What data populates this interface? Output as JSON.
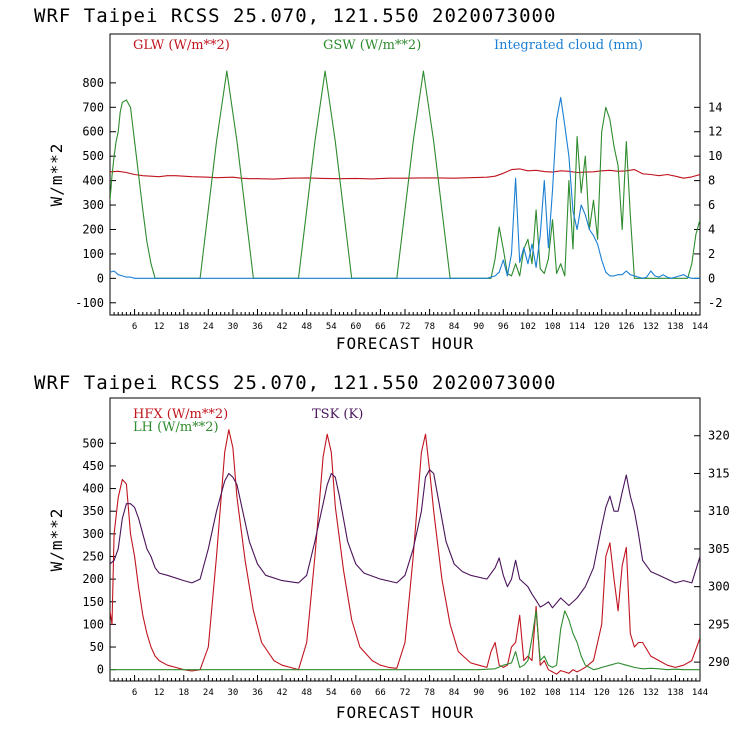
{
  "chart_data": [
    {
      "type": "line",
      "title": "WRF   Taipei RCSS   25.070, 121.550  2020073000",
      "xlabel": "FORECAST HOUR",
      "ylabel": "W/m**2",
      "xlim": [
        0,
        144
      ],
      "xticks": [
        6,
        12,
        18,
        24,
        30,
        36,
        42,
        48,
        54,
        60,
        66,
        72,
        78,
        84,
        90,
        96,
        102,
        108,
        114,
        120,
        126,
        132,
        138,
        144
      ],
      "ylim": [
        -150,
        1000
      ],
      "yticks": [
        -100,
        0,
        100,
        200,
        300,
        400,
        500,
        600,
        700,
        800
      ],
      "y2lim": [
        -3,
        20
      ],
      "y2ticks": [
        -2,
        0,
        2,
        4,
        6,
        8,
        10,
        12,
        14
      ],
      "series": [
        {
          "name": "GLW (W/m**2)",
          "color": "#c0141e",
          "axis": "left",
          "x": [
            0,
            2,
            4,
            6,
            8,
            10,
            12,
            14,
            16,
            18,
            20,
            22,
            24,
            26,
            28,
            30,
            32,
            34,
            36,
            40,
            44,
            48,
            52,
            56,
            60,
            64,
            68,
            72,
            76,
            80,
            84,
            88,
            92,
            94,
            96,
            98,
            100,
            102,
            104,
            106,
            108,
            110,
            112,
            114,
            116,
            118,
            120,
            122,
            124,
            126,
            128,
            130,
            132,
            134,
            136,
            138,
            140,
            142,
            144
          ],
          "values": [
            436,
            438,
            433,
            425,
            420,
            418,
            416,
            420,
            420,
            418,
            416,
            415,
            414,
            412,
            413,
            414,
            410,
            408,
            408,
            406,
            410,
            411,
            409,
            408,
            409,
            407,
            410,
            410,
            411,
            411,
            410,
            412,
            414,
            418,
            430,
            445,
            448,
            440,
            442,
            437,
            435,
            440,
            438,
            433,
            435,
            436,
            440,
            442,
            438,
            440,
            445,
            428,
            425,
            420,
            425,
            418,
            410,
            415,
            425
          ]
        },
        {
          "name": "GSW (W/m**2)",
          "color": "#2e8b2e",
          "axis": "left",
          "x": [
            0,
            0.5,
            1,
            1.5,
            2,
            2.5,
            3,
            4,
            5,
            6,
            7,
            8,
            9,
            10,
            11,
            12,
            22,
            26,
            28.5,
            31,
            35,
            46,
            50,
            52.5,
            55,
            59,
            70,
            74,
            76.5,
            79,
            83,
            93,
            94,
            95,
            96,
            97,
            98,
            99,
            100,
            101,
            102,
            103,
            104,
            105,
            106,
            107,
            108,
            109,
            110,
            111,
            112,
            113,
            114,
            115,
            116,
            117,
            118,
            119,
            120,
            121,
            122,
            123,
            124,
            125,
            126,
            127,
            128,
            129,
            130,
            131,
            132,
            133,
            134,
            135,
            136,
            137,
            138,
            139,
            140,
            141,
            142,
            143,
            144
          ],
          "values": [
            320,
            420,
            500,
            560,
            600,
            680,
            720,
            730,
            700,
            560,
            420,
            280,
            150,
            60,
            0,
            0,
            0,
            560,
            848,
            560,
            0,
            0,
            560,
            848,
            560,
            0,
            0,
            560,
            848,
            560,
            0,
            0,
            80,
            210,
            120,
            20,
            10,
            60,
            10,
            120,
            160,
            60,
            280,
            40,
            20,
            80,
            240,
            20,
            60,
            10,
            400,
            120,
            580,
            350,
            500,
            200,
            320,
            160,
            600,
            700,
            650,
            540,
            460,
            200,
            560,
            260,
            0,
            0,
            0,
            0,
            0,
            0,
            0,
            0,
            0,
            0,
            0,
            0,
            0,
            0,
            60,
            180,
            240
          ]
        },
        {
          "name": "Integrated cloud (mm)",
          "color": "#1a7fd4",
          "axis": "right",
          "x": [
            0,
            1,
            2,
            3,
            4,
            5,
            6,
            8,
            10,
            92,
            94,
            95,
            96,
            97,
            98,
            99,
            100,
            101,
            102,
            103,
            104,
            105,
            106,
            107,
            108,
            109,
            110,
            111,
            112,
            113,
            114,
            115,
            116,
            117,
            118,
            119,
            120,
            121,
            122,
            123,
            124,
            125,
            126,
            127,
            128,
            129,
            130,
            131,
            132,
            133,
            134,
            135,
            136,
            137,
            138,
            139,
            140,
            141,
            142,
            143,
            144
          ],
          "values": [
            0.5,
            0.6,
            0.3,
            0.2,
            0.1,
            0.1,
            0,
            0,
            0,
            0,
            0.2,
            0.5,
            1.5,
            0.2,
            2,
            8.2,
            1.3,
            2.5,
            1.2,
            2.8,
            0.9,
            3.5,
            8,
            2.5,
            7.2,
            13,
            14.8,
            12.5,
            10,
            5.5,
            4,
            6,
            5.2,
            4,
            3.5,
            2.8,
            1.5,
            0.5,
            0.2,
            0.2,
            0.3,
            0.3,
            0.6,
            0.3,
            0.2,
            0.1,
            0,
            0.1,
            0.6,
            0.2,
            0.1,
            0.3,
            0.1,
            0,
            0.1,
            0.2,
            0.3,
            0.1,
            0,
            0,
            0
          ]
        }
      ]
    },
    {
      "type": "line",
      "title": "WRF   Taipei RCSS   25.070, 121.550  2020073000",
      "xlabel": "FORECAST HOUR",
      "ylabel": "W/m**2",
      "xlim": [
        0,
        144
      ],
      "xticks": [
        6,
        12,
        18,
        24,
        30,
        36,
        42,
        48,
        54,
        60,
        66,
        72,
        78,
        84,
        90,
        96,
        102,
        108,
        114,
        120,
        126,
        132,
        138,
        144
      ],
      "ylim": [
        -25,
        600
      ],
      "yticks": [
        0,
        50,
        100,
        150,
        200,
        250,
        300,
        350,
        400,
        450,
        500
      ],
      "y2lim": [
        287.5,
        325
      ],
      "y2ticks": [
        290,
        295,
        300,
        305,
        310,
        315,
        320
      ],
      "series": [
        {
          "name": "HFX (W/m**2)",
          "color": "#c0141e",
          "axis": "left",
          "x": [
            0,
            0.5,
            1,
            2,
            3,
            4,
            5,
            6,
            7,
            8,
            9,
            10,
            11,
            12,
            14,
            16,
            18,
            20,
            22,
            24,
            26,
            28,
            29,
            30,
            31,
            33,
            35,
            37,
            40,
            42,
            44,
            46,
            48,
            50,
            52,
            53,
            54,
            55,
            57,
            59,
            61,
            64,
            66,
            68,
            70,
            72,
            74,
            76,
            77,
            78,
            79,
            81,
            83,
            85,
            88,
            90,
            92,
            93,
            94,
            95,
            96,
            97,
            98,
            99,
            100,
            101,
            102,
            103,
            104,
            105,
            106,
            107,
            108,
            109,
            110,
            111,
            112,
            113,
            114,
            115,
            116,
            118,
            120,
            121,
            122,
            123,
            124,
            125,
            126,
            127,
            128,
            129,
            130,
            132,
            134,
            136,
            138,
            140,
            142,
            144
          ],
          "values": [
            130,
            100,
            300,
            380,
            420,
            410,
            300,
            250,
            180,
            120,
            80,
            50,
            30,
            20,
            10,
            5,
            0,
            -3,
            0,
            50,
            250,
            480,
            530,
            490,
            380,
            240,
            130,
            60,
            20,
            10,
            5,
            0,
            60,
            250,
            470,
            520,
            480,
            360,
            220,
            110,
            50,
            20,
            10,
            5,
            3,
            60,
            250,
            480,
            520,
            440,
            350,
            200,
            100,
            40,
            15,
            10,
            5,
            40,
            60,
            10,
            5,
            10,
            50,
            60,
            120,
            20,
            30,
            20,
            140,
            10,
            20,
            0,
            -5,
            -10,
            -2,
            -5,
            -8,
            0,
            -5,
            0,
            5,
            20,
            100,
            250,
            280,
            200,
            130,
            230,
            270,
            80,
            50,
            60,
            60,
            30,
            20,
            10,
            5,
            10,
            20,
            70
          ]
        },
        {
          "name": "LH  (W/m**2)",
          "color": "#2e8b2e",
          "axis": "left",
          "x": [
            0,
            90,
            94,
            96,
            97,
            98,
            99,
            100,
            101,
            102,
            103,
            104,
            105,
            106,
            107,
            108,
            109,
            110,
            111,
            112,
            113,
            114,
            115,
            116,
            117,
            118,
            119,
            120,
            122,
            124,
            126,
            128,
            130,
            132,
            134,
            136,
            138,
            140,
            142,
            144
          ],
          "values": [
            0,
            0,
            2,
            10,
            12,
            15,
            40,
            5,
            10,
            20,
            70,
            130,
            20,
            30,
            10,
            5,
            10,
            90,
            130,
            110,
            80,
            60,
            30,
            10,
            5,
            0,
            2,
            5,
            10,
            15,
            10,
            5,
            2,
            3,
            2,
            0,
            1,
            0,
            0,
            0
          ]
        },
        {
          "name": "TSK (K)",
          "color": "#4a145a",
          "axis": "right",
          "x": [
            0,
            1,
            2,
            3,
            4,
            5,
            6,
            7,
            8,
            9,
            10,
            11,
            12,
            14,
            18,
            20,
            22,
            24,
            26,
            28,
            29,
            30,
            31,
            32,
            34,
            36,
            38,
            42,
            46,
            48,
            50,
            52,
            53,
            54,
            55,
            56,
            58,
            60,
            62,
            66,
            70,
            72,
            74,
            76,
            77,
            78,
            79,
            80,
            82,
            84,
            86,
            88,
            92,
            94,
            95,
            96,
            97,
            98,
            99,
            100,
            101,
            102,
            103,
            104,
            105,
            106,
            107,
            108,
            110,
            112,
            114,
            116,
            118,
            120,
            121,
            122,
            123,
            124,
            125,
            126,
            127,
            128,
            129,
            130,
            132,
            134,
            136,
            138,
            140,
            142,
            144
          ],
          "values": [
            303,
            303.5,
            305,
            309,
            311,
            311,
            310.5,
            309,
            307,
            305,
            304,
            302.5,
            301.8,
            301.5,
            300.8,
            300.5,
            301,
            305,
            310,
            314,
            315,
            314.5,
            313.5,
            311,
            306,
            303,
            301.5,
            300.8,
            300.5,
            301.5,
            306,
            311,
            313.5,
            315,
            314.5,
            312,
            306,
            303,
            301.8,
            301,
            300.5,
            301.5,
            305,
            310,
            314.5,
            315.5,
            315,
            312,
            306,
            303,
            302,
            301.5,
            301,
            302.5,
            303.8,
            301.5,
            300,
            301,
            303.5,
            301,
            300.5,
            300,
            299,
            298.2,
            297.3,
            297.6,
            298,
            297.2,
            298.5,
            297.5,
            298.5,
            300,
            302.5,
            308,
            310.5,
            312,
            310,
            310,
            312.5,
            314.8,
            312,
            310,
            307,
            303.5,
            302,
            301.5,
            301,
            300.5,
            300.8,
            300.5,
            304
          ]
        }
      ]
    }
  ]
}
